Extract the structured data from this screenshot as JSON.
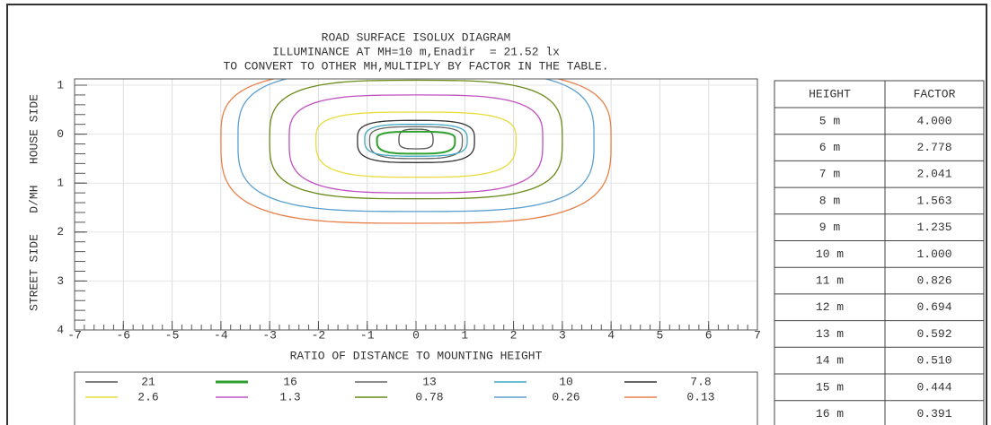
{
  "chart_data": {
    "type": "contour",
    "title": [
      "ROAD SURFACE ISOLUX DIAGRAM",
      "ILLUMINANCE AT MH=10 m,Enadir  = 21.52 lx",
      "TO CONVERT TO OTHER MH,MULTIPLY BY FACTOR IN THE TABLE."
    ],
    "xlabel": "RATIO OF DISTANCE TO MOUNTING HEIGHT",
    "ylabel": "STREET SIDE   D/MH   HOUSE SIDE",
    "xlim": [
      -7,
      7
    ],
    "xticks": [
      -7,
      -6,
      -5,
      -4,
      -3,
      -2,
      -1,
      0,
      1,
      2,
      3,
      4,
      5,
      6,
      7
    ],
    "ylim": [
      -1,
      4
    ],
    "yticks": [
      {
        "value": -1,
        "label": "1"
      },
      0,
      1,
      2,
      3,
      4
    ],
    "grid": true,
    "series": [
      {
        "name": "21",
        "color": "#555555"
      },
      {
        "name": "16",
        "color": "#2ea02e"
      },
      {
        "name": "13",
        "color": "#666666"
      },
      {
        "name": "10",
        "color": "#3fa7c6"
      },
      {
        "name": "7.8",
        "color": "#333333"
      },
      {
        "name": "2.6",
        "color": "#e8dc3a"
      },
      {
        "name": "1.3",
        "color": "#c050c0"
      },
      {
        "name": "0.78",
        "color": "#6a8a1a"
      },
      {
        "name": "0.26",
        "color": "#5a9fd0"
      },
      {
        "name": "0.13",
        "color": "#e8804a"
      }
    ]
  },
  "table": {
    "header": [
      "HEIGHT",
      "FACTOR"
    ],
    "rows": [
      [
        "5 m",
        "4.000"
      ],
      [
        "6 m",
        "2.778"
      ],
      [
        "7 m",
        "2.041"
      ],
      [
        "8 m",
        "1.563"
      ],
      [
        "9 m",
        "1.235"
      ],
      [
        "10 m",
        "1.000"
      ],
      [
        "11 m",
        "0.826"
      ],
      [
        "12 m",
        "0.694"
      ],
      [
        "13 m",
        "0.592"
      ],
      [
        "14 m",
        "0.510"
      ],
      [
        "15 m",
        "0.444"
      ],
      [
        "16 m",
        "0.391"
      ]
    ]
  }
}
